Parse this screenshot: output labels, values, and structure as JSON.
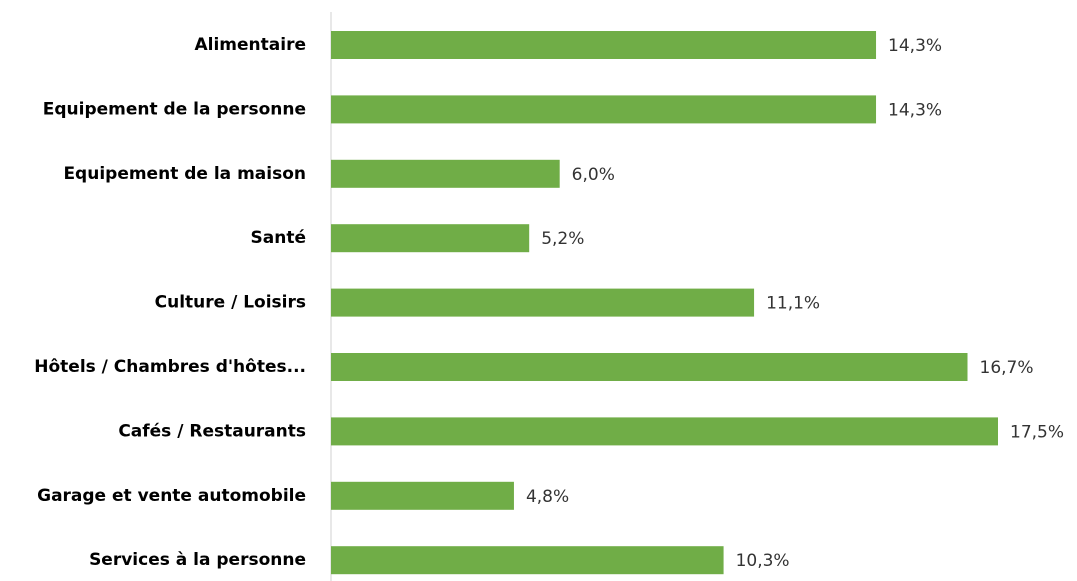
{
  "chart_data": {
    "type": "barh",
    "categories": [
      "Alimentaire",
      "Equipement de la personne",
      "Equipement de la maison",
      "Santé",
      "Culture / Loisirs",
      "Hôtels / Chambres d'hôtes...",
      "Cafés / Restaurants",
      "Garage et vente automobile",
      "Services à la personne"
    ],
    "values": [
      14.3,
      14.3,
      6.0,
      5.2,
      11.1,
      16.7,
      17.5,
      4.8,
      10.3
    ],
    "value_labels": [
      "14,3%",
      "14,3%",
      "6,0%",
      "5,2%",
      "11,1%",
      "16,7%",
      "17,5%",
      "4,8%",
      "10,3%"
    ],
    "color": "#70ad47"
  }
}
